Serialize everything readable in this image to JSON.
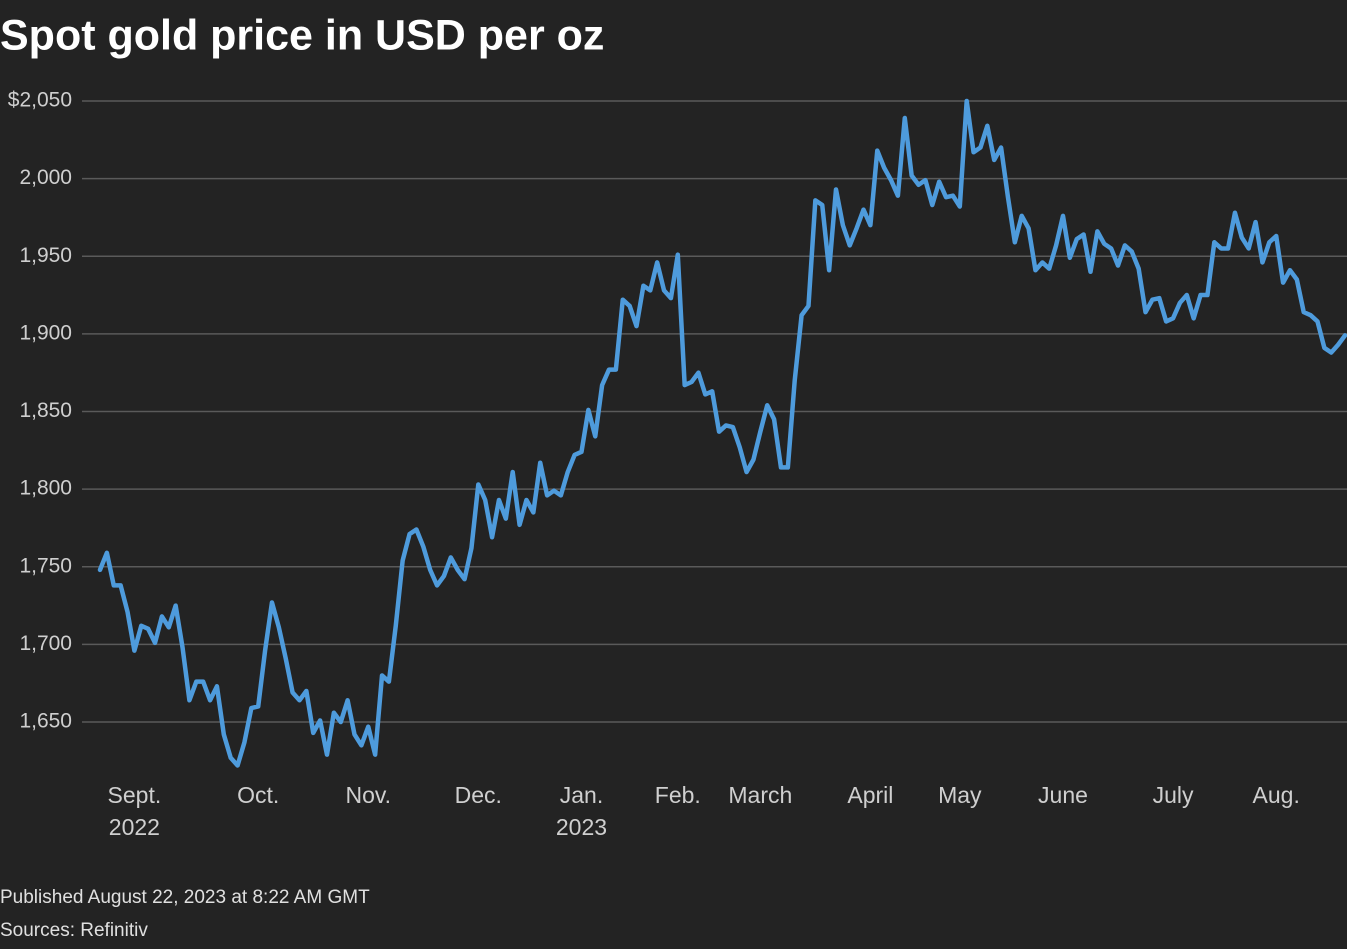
{
  "chart_data": {
    "type": "line",
    "title": "Spot gold price in USD per oz",
    "footer": [
      "Published August 22, 2023 at 8:22 AM GMT",
      "Sources: Refinitiv"
    ],
    "color": "#4e9bdc",
    "grid": true,
    "ylim": [
      1620,
      2055
    ],
    "yticks": [
      {
        "value": 1650,
        "label": "1,650"
      },
      {
        "value": 1700,
        "label": "1,700"
      },
      {
        "value": 1750,
        "label": "1,750"
      },
      {
        "value": 1800,
        "label": "1,800"
      },
      {
        "value": 1850,
        "label": "1,850"
      },
      {
        "value": 1900,
        "label": "1,900"
      },
      {
        "value": 1950,
        "label": "1,950"
      },
      {
        "value": 2000,
        "label": "2,000"
      },
      {
        "value": 2050,
        "label": "$2,050"
      }
    ],
    "categories": [
      null,
      null,
      null,
      null,
      null,
      "Sept.\n2022",
      null,
      null,
      null,
      null,
      null,
      null,
      null,
      null,
      null,
      null,
      null,
      null,
      null,
      null,
      null,
      null,
      null,
      "Oct.",
      null,
      null,
      null,
      null,
      null,
      null,
      null,
      null,
      null,
      null,
      null,
      null,
      null,
      null,
      null,
      "Nov.",
      null,
      null,
      null,
      null,
      null,
      null,
      null,
      null,
      null,
      null,
      null,
      null,
      null,
      null,
      null,
      "Dec.",
      null,
      null,
      null,
      null,
      null,
      null,
      null,
      null,
      null,
      null,
      null,
      null,
      null,
      null,
      "Jan.\n2023",
      null,
      null,
      null,
      null,
      null,
      null,
      null,
      null,
      null,
      null,
      null,
      null,
      null,
      "Feb.",
      null,
      null,
      null,
      null,
      null,
      null,
      null,
      null,
      null,
      null,
      null,
      "March",
      null,
      null,
      null,
      null,
      null,
      null,
      null,
      null,
      null,
      null,
      null,
      null,
      null,
      null,
      null,
      "April",
      null,
      null,
      null,
      null,
      null,
      null,
      null,
      null,
      null,
      null,
      null,
      null,
      "May",
      null,
      null,
      null,
      null,
      null,
      null,
      null,
      null,
      null,
      null,
      null,
      null,
      null,
      null,
      "June",
      null,
      null,
      null,
      null,
      null,
      null,
      null,
      null,
      null,
      null,
      null,
      null,
      null,
      null,
      null,
      "July",
      null,
      null,
      null,
      null,
      null,
      null,
      null,
      null,
      null,
      null,
      null,
      null,
      null,
      null,
      "Aug.",
      null,
      null,
      null,
      null,
      null,
      null,
      null,
      null,
      null,
      null
    ],
    "values": [
      1748,
      1759,
      1738,
      1738,
      1721,
      1696,
      1712,
      1710,
      1701,
      1718,
      1711,
      1725,
      1698,
      1664,
      1676,
      1676,
      1664,
      1673,
      1642,
      1627,
      1622,
      1637,
      1659,
      1660,
      1696,
      1727,
      1711,
      1691,
      1669,
      1664,
      1670,
      1643,
      1651,
      1629,
      1656,
      1650,
      1664,
      1642,
      1635,
      1647,
      1629,
      1680,
      1676,
      1712,
      1754,
      1771,
      1774,
      1763,
      1748,
      1738,
      1744,
      1756,
      1748,
      1742,
      1762,
      1803,
      1793,
      1769,
      1793,
      1781,
      1811,
      1777,
      1793,
      1785,
      1817,
      1796,
      1799,
      1796,
      1811,
      1822,
      1824,
      1851,
      1834,
      1867,
      1877,
      1877,
      1922,
      1918,
      1905,
      1931,
      1928,
      1946,
      1928,
      1923,
      1951,
      1867,
      1869,
      1875,
      1861,
      1863,
      1837,
      1841,
      1840,
      1827,
      1811,
      1819,
      1837,
      1854,
      1845,
      1814,
      1814,
      1870,
      1912,
      1918,
      1986,
      1983,
      1941,
      1993,
      1970,
      1957,
      1968,
      1980,
      1970,
      2018,
      2007,
      1999,
      1989,
      2039,
      2002,
      1996,
      1999,
      1983,
      1998,
      1988,
      1989,
      1982,
      2050,
      2017,
      2020,
      2034,
      2012,
      2020,
      1988,
      1959,
      1976,
      1968,
      1941,
      1946,
      1942,
      1957,
      1976,
      1949,
      1961,
      1964,
      1940,
      1966,
      1958,
      1955,
      1944,
      1957,
      1953,
      1942,
      1914,
      1922,
      1923,
      1908,
      1910,
      1920,
      1925,
      1910,
      1925,
      1925,
      1959,
      1955,
      1955,
      1978,
      1962,
      1955,
      1972,
      1946,
      1959,
      1963,
      1933,
      1941,
      1935,
      1914,
      1912,
      1908,
      1891,
      1888,
      1893,
      1899
    ]
  }
}
